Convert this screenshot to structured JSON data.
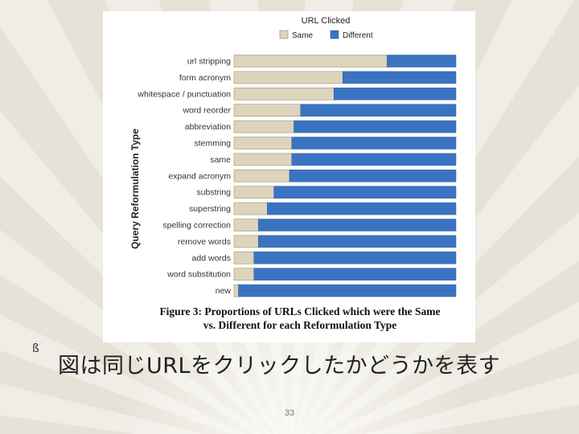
{
  "slide": {
    "bullet": "ß",
    "text": "図は同じURLをクリックしたかどうかを表す",
    "page_number": "33"
  },
  "colors": {
    "same": "#ddd4bb",
    "different": "#3a74c0",
    "frame": "#2c5fa0"
  },
  "chart_data": {
    "type": "bar",
    "orientation": "horizontal",
    "stacked": true,
    "normalized": true,
    "legend_title": "URL Clicked",
    "legend_position": "top",
    "ylabel": "Query Reformulation Type",
    "xlabel": "",
    "xlim": [
      0,
      1
    ],
    "caption_line1": "Figure 3: Proportions of URLs Clicked which were the Same",
    "caption_line2": "vs. Different for each Reformulation Type",
    "categories": [
      "url stripping",
      "form acronym",
      "whitespace / punctuation",
      "word reorder",
      "abbreviation",
      "stemming",
      "same",
      "expand acronym",
      "substring",
      "superstring",
      "spelling correction",
      "remove words",
      "add words",
      "word substitution",
      "new"
    ],
    "series": [
      {
        "name": "Same",
        "values": [
          0.69,
          0.49,
          0.45,
          0.3,
          0.27,
          0.26,
          0.26,
          0.25,
          0.18,
          0.15,
          0.11,
          0.11,
          0.09,
          0.09,
          0.02
        ]
      },
      {
        "name": "Different",
        "values": [
          0.31,
          0.51,
          0.55,
          0.7,
          0.73,
          0.74,
          0.74,
          0.75,
          0.82,
          0.85,
          0.89,
          0.89,
          0.91,
          0.91,
          0.98
        ]
      }
    ]
  }
}
